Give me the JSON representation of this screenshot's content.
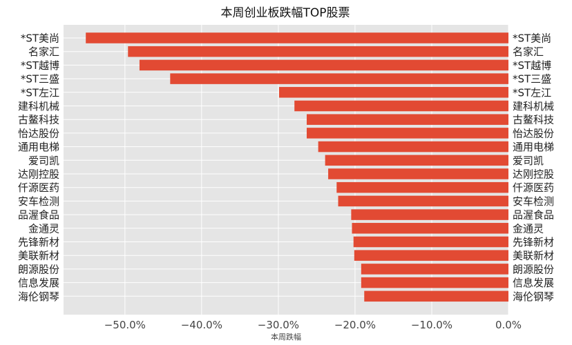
{
  "chart_data": {
    "type": "bar",
    "orientation": "horizontal",
    "title": "本周创业板跌幅TOP股票",
    "xlabel": "本周跌幅",
    "ylabel": "",
    "xlim": [
      -58,
      0
    ],
    "grid": true,
    "bar_color": "#e24a33",
    "background_color": "#e5e5e5",
    "xticks": [
      -50,
      -40,
      -30,
      -20,
      -10,
      0
    ],
    "xtick_labels": [
      "−50.0%",
      "−40.0%",
      "−30.0%",
      "−20.0%",
      "−10.0%",
      "0.0%"
    ],
    "categories": [
      "*ST美尚",
      "名家汇",
      "*ST越博",
      "*ST三盛",
      "*ST左江",
      "建科机械",
      "古鳌科技",
      "怡达股份",
      "通用电梯",
      "爱司凯",
      "达刚控股",
      "仟源医药",
      "安车检测",
      "品渥食品",
      "金通灵",
      "先锋新材",
      "美联新材",
      "朗源股份",
      "信息发展",
      "海伦钢琴"
    ],
    "values": [
      -55.1,
      -49.6,
      -48.1,
      -44.1,
      -29.9,
      -27.9,
      -26.3,
      -26.3,
      -24.8,
      -23.9,
      -23.5,
      -22.4,
      -22.2,
      -20.5,
      -20.4,
      -20.2,
      -20.1,
      -19.2,
      -19.2,
      -18.8
    ]
  }
}
